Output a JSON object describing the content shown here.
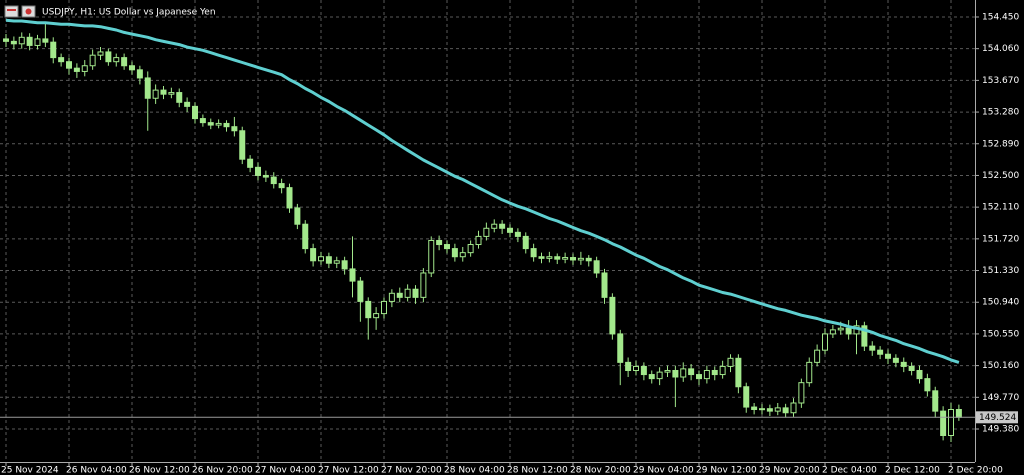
{
  "chart_data": {
    "type": "candlestick",
    "title": "USDJPY, H1: US Dollar vs Japanese Yen",
    "categories": [
      "25 Nov 2024",
      null,
      null,
      null,
      null,
      null,
      null,
      null,
      "26 Nov 04:00",
      null,
      null,
      null,
      null,
      null,
      null,
      null,
      "26 Nov 12:00",
      null,
      null,
      null,
      null,
      null,
      null,
      null,
      "26 Nov 20:00",
      null,
      null,
      null,
      null,
      null,
      null,
      null,
      "27 Nov 04:00",
      null,
      null,
      null,
      null,
      null,
      null,
      null,
      "27 Nov 12:00",
      null,
      null,
      null,
      null,
      null,
      null,
      null,
      "27 Nov 20:00",
      null,
      null,
      null,
      null,
      null,
      null,
      null,
      "28 Nov 04:00",
      null,
      null,
      null,
      null,
      null,
      null,
      null,
      "28 Nov 12:00",
      null,
      null,
      null,
      null,
      null,
      null,
      null,
      "28 Nov 20:00",
      null,
      null,
      null,
      null,
      null,
      null,
      null,
      "29 Nov 04:00",
      null,
      null,
      null,
      null,
      null,
      null,
      null,
      "29 Nov 12:00",
      null,
      null,
      null,
      null,
      null,
      null,
      null,
      "29 Nov 20:00",
      null,
      null,
      null,
      null,
      null,
      null,
      null,
      "2 Dec 04:00",
      null,
      null,
      null,
      null,
      null,
      null,
      null,
      "2 Dec 12:00",
      null,
      null,
      null,
      null,
      null,
      null,
      null,
      "2 Dec 20:00",
      null
    ],
    "open": [
      154.18,
      154.15,
      154.12,
      154.2,
      154.1,
      154.18,
      154.14,
      153.95,
      153.9,
      153.82,
      153.78,
      153.85,
      153.98,
      154.02,
      153.9,
      153.95,
      153.85,
      153.8,
      153.7,
      153.45,
      153.55,
      153.5,
      153.52,
      153.4,
      153.35,
      153.2,
      153.15,
      153.12,
      153.14,
      153.1,
      153.05,
      152.7,
      152.6,
      152.5,
      152.48,
      152.4,
      152.35,
      152.1,
      151.9,
      151.6,
      151.45,
      151.5,
      151.42,
      151.45,
      151.35,
      151.2,
      150.95,
      150.75,
      150.8,
      150.95,
      151.05,
      151.0,
      151.1,
      151.0,
      151.3,
      151.7,
      151.65,
      151.6,
      151.5,
      151.55,
      151.65,
      151.75,
      151.85,
      151.9,
      151.85,
      151.8,
      151.75,
      151.6,
      151.5,
      151.48,
      151.5,
      151.47,
      151.49,
      151.46,
      151.48,
      151.45,
      151.3,
      151.0,
      150.55,
      150.2,
      150.1,
      150.15,
      150.05,
      150.0,
      150.08,
      150.1,
      150.02,
      150.12,
      150.05,
      150.0,
      150.1,
      150.05,
      150.15,
      150.25,
      149.9,
      149.65,
      149.62,
      149.63,
      149.6,
      149.64,
      149.58,
      149.7,
      149.95,
      150.2,
      150.35,
      150.55,
      150.6,
      150.62,
      150.55,
      150.65,
      150.4,
      150.35,
      150.3,
      150.25,
      150.2,
      150.15,
      150.1,
      150.0,
      149.85,
      149.6,
      149.3,
      149.62
    ],
    "high": [
      154.24,
      154.21,
      154.26,
      154.25,
      154.23,
      154.38,
      154.2,
      154.0,
      153.95,
      153.88,
      153.92,
      154.05,
      154.08,
      154.06,
      154.0,
      154.0,
      153.9,
      153.85,
      153.78,
      153.62,
      153.6,
      153.58,
      153.57,
      153.46,
      153.4,
      153.25,
      153.2,
      153.19,
      153.18,
      153.22,
      153.1,
      152.75,
      152.66,
      152.56,
      152.54,
      152.46,
      152.4,
      152.15,
      151.95,
      151.66,
      151.56,
      151.55,
      151.5,
      151.5,
      151.75,
      151.25,
      151.0,
      150.88,
      151.0,
      151.1,
      151.12,
      151.16,
      151.15,
      151.36,
      151.75,
      151.76,
      151.7,
      151.66,
      151.62,
      151.7,
      151.82,
      151.92,
      151.96,
      151.95,
      151.9,
      151.85,
      151.8,
      151.66,
      151.55,
      151.56,
      151.54,
      151.55,
      151.54,
      151.56,
      151.52,
      151.5,
      151.35,
      151.05,
      150.6,
      150.26,
      150.22,
      150.2,
      150.1,
      150.14,
      150.16,
      150.16,
      150.2,
      150.18,
      150.1,
      150.16,
      150.15,
      150.22,
      150.3,
      150.3,
      149.95,
      149.7,
      149.69,
      149.68,
      149.7,
      149.69,
      149.76,
      150.0,
      150.26,
      150.42,
      150.62,
      150.66,
      150.7,
      150.72,
      150.72,
      150.7,
      150.46,
      150.4,
      150.36,
      150.3,
      150.26,
      150.2,
      150.16,
      150.06,
      149.9,
      149.66,
      149.7,
      149.68
    ],
    "low": [
      154.08,
      154.05,
      154.06,
      154.04,
      154.05,
      154.08,
      153.88,
      153.84,
      153.74,
      153.7,
      153.72,
      153.8,
      153.92,
      153.85,
      153.84,
      153.8,
      153.74,
      153.62,
      153.05,
      153.38,
      153.44,
      153.45,
      153.34,
      153.28,
      153.14,
      153.1,
      153.07,
      153.08,
      153.04,
      152.98,
      152.64,
      152.54,
      152.44,
      152.42,
      152.34,
      152.28,
      152.04,
      151.84,
      151.54,
      151.38,
      151.4,
      151.36,
      151.36,
      151.28,
      151.0,
      150.7,
      150.48,
      150.6,
      150.74,
      150.88,
      150.94,
      150.95,
      150.92,
      150.94,
      151.25,
      151.58,
      151.54,
      151.44,
      151.44,
      151.5,
      151.6,
      151.7,
      151.8,
      151.78,
      151.74,
      151.68,
      151.54,
      151.44,
      151.42,
      151.43,
      151.41,
      151.42,
      151.4,
      151.4,
      151.38,
      151.24,
      150.92,
      150.48,
      149.92,
      150.02,
      150.04,
      149.98,
      149.94,
      149.92,
      150.02,
      149.65,
      149.96,
      149.98,
      149.92,
      149.94,
      149.98,
      150.0,
      150.08,
      149.82,
      149.58,
      149.56,
      149.56,
      149.54,
      149.55,
      149.52,
      149.53,
      149.64,
      149.9,
      150.15,
      150.3,
      150.5,
      150.54,
      150.48,
      150.3,
      150.34,
      150.28,
      150.24,
      150.18,
      150.14,
      150.08,
      150.04,
      149.94,
      149.78,
      149.52,
      149.24,
      149.22,
      149.48
    ],
    "close": [
      154.15,
      154.12,
      154.2,
      154.1,
      154.18,
      154.14,
      153.95,
      153.9,
      153.82,
      153.78,
      153.85,
      153.98,
      154.02,
      153.9,
      153.95,
      153.85,
      153.8,
      153.7,
      153.45,
      153.55,
      153.5,
      153.52,
      153.4,
      153.35,
      153.2,
      153.15,
      153.12,
      153.14,
      153.1,
      153.05,
      152.7,
      152.6,
      152.5,
      152.48,
      152.4,
      152.35,
      152.1,
      151.9,
      151.6,
      151.45,
      151.5,
      151.42,
      151.45,
      151.35,
      151.2,
      150.95,
      150.75,
      150.8,
      150.95,
      151.05,
      151.0,
      151.1,
      151.0,
      151.3,
      151.7,
      151.65,
      151.6,
      151.5,
      151.55,
      151.65,
      151.75,
      151.85,
      151.9,
      151.85,
      151.8,
      151.75,
      151.6,
      151.5,
      151.48,
      151.5,
      151.47,
      151.49,
      151.46,
      151.48,
      151.45,
      151.3,
      151.0,
      150.55,
      150.2,
      150.1,
      150.15,
      150.05,
      150.0,
      150.08,
      150.1,
      150.02,
      150.12,
      150.05,
      150.0,
      150.1,
      150.05,
      150.15,
      150.25,
      149.9,
      149.65,
      149.62,
      149.63,
      149.6,
      149.64,
      149.58,
      149.7,
      149.95,
      150.2,
      150.35,
      150.55,
      150.6,
      150.62,
      150.55,
      150.65,
      150.4,
      150.35,
      150.3,
      150.25,
      150.2,
      150.15,
      150.1,
      150.0,
      149.85,
      149.6,
      149.3,
      149.62,
      149.524
    ],
    "candle_color": "#a3e88c",
    "ma": {
      "color": "#5fcfd0",
      "values": [
        154.41,
        154.4,
        154.4,
        154.39,
        154.38,
        154.38,
        154.37,
        154.36,
        154.36,
        154.35,
        154.34,
        154.34,
        154.33,
        154.31,
        154.29,
        154.26,
        154.24,
        154.22,
        154.2,
        154.17,
        154.15,
        154.13,
        154.11,
        154.08,
        154.06,
        154.04,
        154.01,
        153.98,
        153.95,
        153.92,
        153.89,
        153.86,
        153.83,
        153.8,
        153.77,
        153.74,
        153.68,
        153.63,
        153.57,
        153.52,
        153.46,
        153.41,
        153.35,
        153.3,
        153.24,
        153.18,
        153.12,
        153.06,
        153.0,
        152.93,
        152.87,
        152.81,
        152.75,
        152.69,
        152.64,
        152.59,
        152.54,
        152.49,
        152.45,
        152.4,
        152.35,
        152.3,
        152.25,
        152.2,
        152.16,
        152.12,
        152.09,
        152.05,
        152.01,
        151.97,
        151.94,
        151.9,
        151.86,
        151.82,
        151.79,
        151.75,
        151.71,
        151.66,
        151.62,
        151.57,
        151.52,
        151.48,
        151.43,
        151.38,
        151.34,
        151.29,
        151.24,
        151.2,
        151.15,
        151.12,
        151.09,
        151.06,
        151.04,
        151.01,
        150.98,
        150.95,
        150.92,
        150.89,
        150.86,
        150.84,
        150.81,
        150.78,
        150.76,
        150.74,
        150.71,
        150.69,
        150.67,
        150.64,
        150.62,
        150.6,
        150.57,
        150.53,
        150.5,
        150.47,
        150.43,
        150.4,
        150.37,
        150.33,
        150.3,
        150.27,
        150.23,
        150.2
      ]
    },
    "last_price": {
      "value": 149.524,
      "label": "149.524"
    },
    "ylim": [
      148.974,
      154.659
    ],
    "yticks": [
      {
        "value": 154.45,
        "label": "154.450"
      },
      {
        "value": 154.06,
        "label": "154.060"
      },
      {
        "value": 153.67,
        "label": "153.670"
      },
      {
        "value": 153.28,
        "label": "153.280"
      },
      {
        "value": 152.89,
        "label": "152.890"
      },
      {
        "value": 152.5,
        "label": "152.500"
      },
      {
        "value": 152.11,
        "label": "152.110"
      },
      {
        "value": 151.72,
        "label": "151.720"
      },
      {
        "value": 151.33,
        "label": "151.330"
      },
      {
        "value": 150.94,
        "label": "150.940"
      },
      {
        "value": 150.55,
        "label": "150.550"
      },
      {
        "value": 150.16,
        "label": "150.160"
      },
      {
        "value": 149.77,
        "label": "149.770"
      },
      {
        "value": 149.38,
        "label": "149.380"
      }
    ],
    "grid": true
  }
}
